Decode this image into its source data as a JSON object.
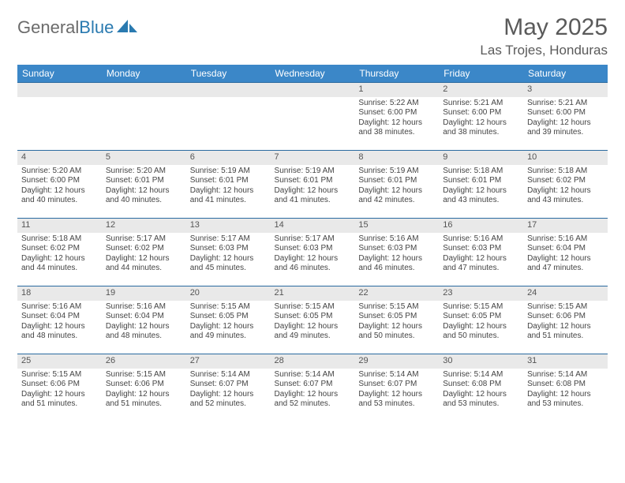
{
  "brand": {
    "part1": "General",
    "part2": "Blue"
  },
  "title": "May 2025",
  "location": "Las Trojes, Honduras",
  "colors": {
    "header_bg": "#3b87c8",
    "header_text": "#ffffff",
    "rule": "#2a6aa0",
    "daynum_bg": "#e9e9e9",
    "brand_gray": "#6b6b6b",
    "brand_blue": "#2a7ab0"
  },
  "weekdays": [
    "Sunday",
    "Monday",
    "Tuesday",
    "Wednesday",
    "Thursday",
    "Friday",
    "Saturday"
  ],
  "weeks": [
    [
      null,
      null,
      null,
      null,
      {
        "n": "1",
        "sr": "5:22 AM",
        "ss": "6:00 PM",
        "dl": "12 hours and 38 minutes."
      },
      {
        "n": "2",
        "sr": "5:21 AM",
        "ss": "6:00 PM",
        "dl": "12 hours and 38 minutes."
      },
      {
        "n": "3",
        "sr": "5:21 AM",
        "ss": "6:00 PM",
        "dl": "12 hours and 39 minutes."
      }
    ],
    [
      {
        "n": "4",
        "sr": "5:20 AM",
        "ss": "6:00 PM",
        "dl": "12 hours and 40 minutes."
      },
      {
        "n": "5",
        "sr": "5:20 AM",
        "ss": "6:01 PM",
        "dl": "12 hours and 40 minutes."
      },
      {
        "n": "6",
        "sr": "5:19 AM",
        "ss": "6:01 PM",
        "dl": "12 hours and 41 minutes."
      },
      {
        "n": "7",
        "sr": "5:19 AM",
        "ss": "6:01 PM",
        "dl": "12 hours and 41 minutes."
      },
      {
        "n": "8",
        "sr": "5:19 AM",
        "ss": "6:01 PM",
        "dl": "12 hours and 42 minutes."
      },
      {
        "n": "9",
        "sr": "5:18 AM",
        "ss": "6:01 PM",
        "dl": "12 hours and 43 minutes."
      },
      {
        "n": "10",
        "sr": "5:18 AM",
        "ss": "6:02 PM",
        "dl": "12 hours and 43 minutes."
      }
    ],
    [
      {
        "n": "11",
        "sr": "5:18 AM",
        "ss": "6:02 PM",
        "dl": "12 hours and 44 minutes."
      },
      {
        "n": "12",
        "sr": "5:17 AM",
        "ss": "6:02 PM",
        "dl": "12 hours and 44 minutes."
      },
      {
        "n": "13",
        "sr": "5:17 AM",
        "ss": "6:03 PM",
        "dl": "12 hours and 45 minutes."
      },
      {
        "n": "14",
        "sr": "5:17 AM",
        "ss": "6:03 PM",
        "dl": "12 hours and 46 minutes."
      },
      {
        "n": "15",
        "sr": "5:16 AM",
        "ss": "6:03 PM",
        "dl": "12 hours and 46 minutes."
      },
      {
        "n": "16",
        "sr": "5:16 AM",
        "ss": "6:03 PM",
        "dl": "12 hours and 47 minutes."
      },
      {
        "n": "17",
        "sr": "5:16 AM",
        "ss": "6:04 PM",
        "dl": "12 hours and 47 minutes."
      }
    ],
    [
      {
        "n": "18",
        "sr": "5:16 AM",
        "ss": "6:04 PM",
        "dl": "12 hours and 48 minutes."
      },
      {
        "n": "19",
        "sr": "5:16 AM",
        "ss": "6:04 PM",
        "dl": "12 hours and 48 minutes."
      },
      {
        "n": "20",
        "sr": "5:15 AM",
        "ss": "6:05 PM",
        "dl": "12 hours and 49 minutes."
      },
      {
        "n": "21",
        "sr": "5:15 AM",
        "ss": "6:05 PM",
        "dl": "12 hours and 49 minutes."
      },
      {
        "n": "22",
        "sr": "5:15 AM",
        "ss": "6:05 PM",
        "dl": "12 hours and 50 minutes."
      },
      {
        "n": "23",
        "sr": "5:15 AM",
        "ss": "6:05 PM",
        "dl": "12 hours and 50 minutes."
      },
      {
        "n": "24",
        "sr": "5:15 AM",
        "ss": "6:06 PM",
        "dl": "12 hours and 51 minutes."
      }
    ],
    [
      {
        "n": "25",
        "sr": "5:15 AM",
        "ss": "6:06 PM",
        "dl": "12 hours and 51 minutes."
      },
      {
        "n": "26",
        "sr": "5:15 AM",
        "ss": "6:06 PM",
        "dl": "12 hours and 51 minutes."
      },
      {
        "n": "27",
        "sr": "5:14 AM",
        "ss": "6:07 PM",
        "dl": "12 hours and 52 minutes."
      },
      {
        "n": "28",
        "sr": "5:14 AM",
        "ss": "6:07 PM",
        "dl": "12 hours and 52 minutes."
      },
      {
        "n": "29",
        "sr": "5:14 AM",
        "ss": "6:07 PM",
        "dl": "12 hours and 53 minutes."
      },
      {
        "n": "30",
        "sr": "5:14 AM",
        "ss": "6:08 PM",
        "dl": "12 hours and 53 minutes."
      },
      {
        "n": "31",
        "sr": "5:14 AM",
        "ss": "6:08 PM",
        "dl": "12 hours and 53 minutes."
      }
    ]
  ],
  "labels": {
    "sunrise": "Sunrise: ",
    "sunset": "Sunset: ",
    "daylight": "Daylight: "
  }
}
